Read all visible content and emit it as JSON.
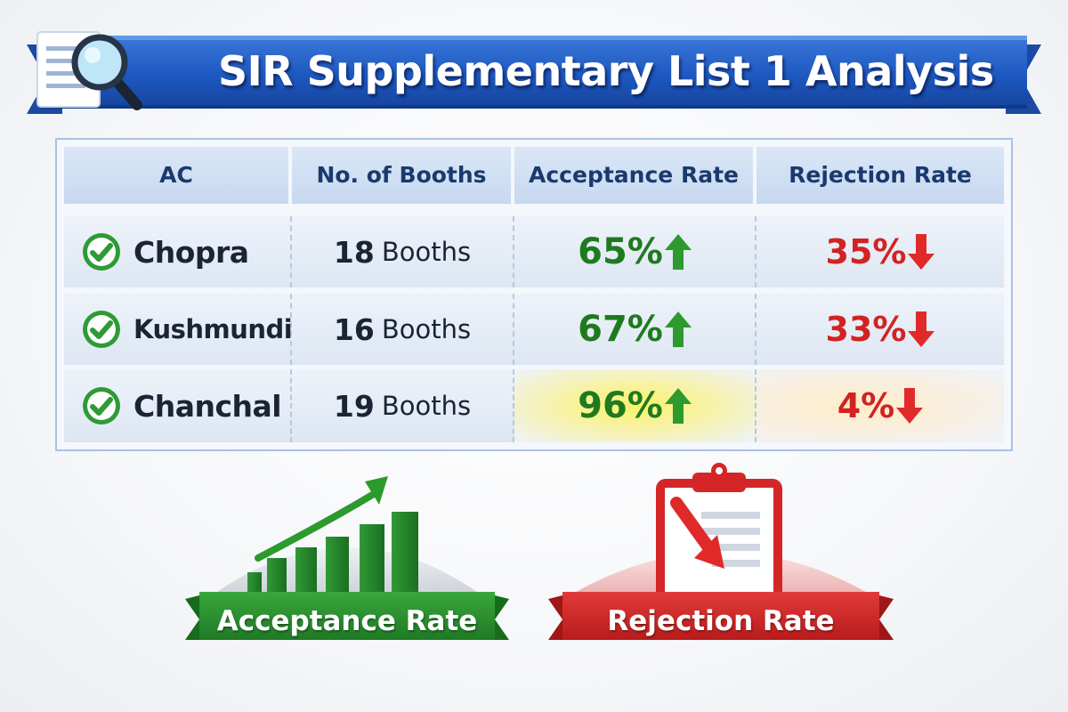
{
  "title": "SIR Supplementary List 1 Analysis",
  "icons": {
    "banner": "document-magnifier-icon",
    "row_status": "check-circle-icon",
    "up": "arrow-up-icon",
    "down": "arrow-down-icon",
    "accept": "rising-bar-chart-icon",
    "reject": "clipboard-down-arrow-icon"
  },
  "colors": {
    "banner": "#2156b6",
    "green": "#1f7a1f",
    "red": "#d22222",
    "header": "#1a3a6e"
  },
  "table": {
    "headers": [
      "AC",
      "No. of Booths",
      "Acceptance Rate",
      "Rejection Rate"
    ],
    "rows": [
      {
        "ac": "Chopra",
        "booth_count": "18",
        "booth_unit": "Booths",
        "acceptance": "65%",
        "rejection": "35%"
      },
      {
        "ac": "Kushmundi",
        "booth_count": "16",
        "booth_unit": "Booths",
        "acceptance": "67%",
        "rejection": "33%"
      },
      {
        "ac": "Chanchal",
        "booth_count": "19",
        "booth_unit": "Booths",
        "acceptance": "96%",
        "rejection": "4%"
      }
    ]
  },
  "legend": {
    "acceptance_label": "Acceptance Rate",
    "rejection_label": "Rejection Rate"
  }
}
